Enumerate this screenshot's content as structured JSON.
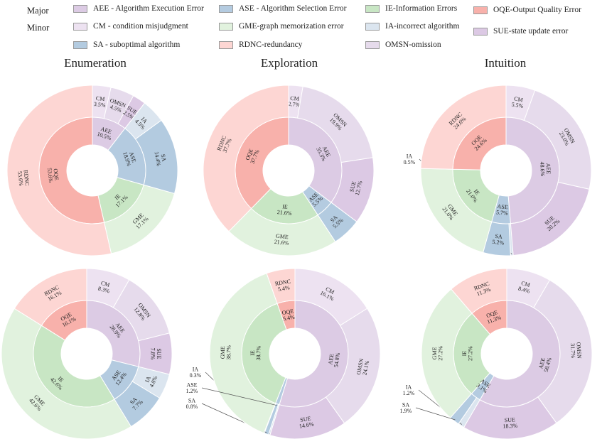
{
  "legend": {
    "major_label": "Major",
    "minor_label": "Minor",
    "items": [
      {
        "key": "AEE",
        "text": "AEE - Algorithm Execution Error",
        "color": "#dccbe4"
      },
      {
        "key": "ASE",
        "text": "ASE - Algorithm Selection Error",
        "color": "#b4cbe0"
      },
      {
        "key": "IE",
        "text": "IE-Information Errors",
        "color": "#c8e6c4"
      },
      {
        "key": "OQE",
        "text": "OQE-Output Quality Error",
        "color": "#f8b1ab"
      },
      {
        "key": "CM",
        "text": "CM - condition misjudgment",
        "color": "#ede2f1"
      },
      {
        "key": "GME",
        "text": "GME-graph memorization error",
        "color": "#e1f2de"
      },
      {
        "key": "IA",
        "text": "IA-incorrect algorithm",
        "color": "#dbe5ef"
      },
      {
        "key": "SUE",
        "text": "SUE-state update error",
        "color": "#dcc9e4"
      },
      {
        "key": "SA",
        "text": "SA - suboptimal algorithm",
        "color": "#b3cbe0"
      },
      {
        "key": "RDNC",
        "text": "RDNC-redundancy",
        "color": "#fdd6d3"
      },
      {
        "key": "OMSN",
        "text": "OMSN-omission",
        "color": "#e6dbec"
      }
    ]
  },
  "colors": {
    "AEE": "#dccbe4",
    "ASE": "#b4cbe0",
    "IE": "#c8e6c4",
    "OQE": "#f8b1ab",
    "CM": "#ede2f1",
    "OMSN": "#e6dbec",
    "SUE": "#dcc9e4",
    "SA": "#b3cbe0",
    "IA": "#dbe5ef",
    "GME": "#e1f2de",
    "RDNC": "#fdd6d3"
  },
  "column_titles": [
    "Enumeration",
    "Exploration",
    "Intuition"
  ],
  "chart_data": [
    {
      "type": "sunburst",
      "title": "Enumeration",
      "row": 1,
      "start_angle": 90,
      "inner": [
        {
          "label": "AEE",
          "value": 10.5
        },
        {
          "label": "ASE",
          "value": 18.9
        },
        {
          "label": "IE",
          "value": 17.1
        },
        {
          "label": "OQE",
          "value": 53.6
        }
      ],
      "outer": [
        {
          "label": "CM",
          "value": 3.5,
          "parent": "AEE"
        },
        {
          "label": "OMSN",
          "value": 4.5,
          "parent": "AEE"
        },
        {
          "label": "SUE",
          "value": 2.5,
          "parent": "AEE"
        },
        {
          "label": "IA",
          "value": 4.5,
          "parent": "ASE"
        },
        {
          "label": "SA",
          "value": 14.4,
          "parent": "ASE"
        },
        {
          "label": "GME",
          "value": 17.1,
          "parent": "IE"
        },
        {
          "label": "RDNC",
          "value": 53.6,
          "parent": "OQE"
        }
      ]
    },
    {
      "type": "sunburst",
      "title": "Exploration",
      "row": 1,
      "start_angle": 90,
      "inner": [
        {
          "label": "AEE",
          "value": 35.3
        },
        {
          "label": "ASE",
          "value": 5.5
        },
        {
          "label": "IE",
          "value": 21.6
        },
        {
          "label": "OQE",
          "value": 37.7
        }
      ],
      "outer": [
        {
          "label": "CM",
          "value": 2.7,
          "parent": "AEE"
        },
        {
          "label": "OMSN",
          "value": 19.9,
          "parent": "AEE"
        },
        {
          "label": "SUE",
          "value": 12.7,
          "parent": "AEE"
        },
        {
          "label": "SA",
          "value": 5.5,
          "parent": "ASE"
        },
        {
          "label": "GME",
          "value": 21.6,
          "parent": "IE"
        },
        {
          "label": "RDNC",
          "value": 37.7,
          "parent": "OQE"
        }
      ]
    },
    {
      "type": "sunburst",
      "title": "Intuition",
      "row": 1,
      "start_angle": 90,
      "inner": [
        {
          "label": "AEE",
          "value": 48.6
        },
        {
          "label": "ASE",
          "value": 5.7
        },
        {
          "label": "IE",
          "value": 21.0
        },
        {
          "label": "OQE",
          "value": 24.6
        }
      ],
      "outer": [
        {
          "label": "CM",
          "value": 5.5,
          "parent": "AEE"
        },
        {
          "label": "OMSN",
          "value": 23.0,
          "parent": "AEE"
        },
        {
          "label": "SUE",
          "value": 20.2,
          "parent": "AEE"
        },
        {
          "label": "IA",
          "value": 0.5,
          "parent": "ASE",
          "callout": true
        },
        {
          "label": "SA",
          "value": 5.2,
          "parent": "ASE"
        },
        {
          "label": "GME",
          "value": 21.0,
          "parent": "IE"
        },
        {
          "label": "RDNC",
          "value": 24.6,
          "parent": "OQE"
        }
      ]
    },
    {
      "type": "sunburst",
      "title": "Enumeration",
      "row": 2,
      "start_angle": 90,
      "inner": [
        {
          "label": "AEE",
          "value": 28.9
        },
        {
          "label": "ASE",
          "value": 12.4
        },
        {
          "label": "IE",
          "value": 42.6
        },
        {
          "label": "OQE",
          "value": 16.1
        }
      ],
      "outer": [
        {
          "label": "CM",
          "value": 8.3,
          "parent": "AEE"
        },
        {
          "label": "OMSN",
          "value": 12.8,
          "parent": "AEE"
        },
        {
          "label": "SUE",
          "value": 7.8,
          "parent": "AEE"
        },
        {
          "label": "IA",
          "value": 4.8,
          "parent": "ASE"
        },
        {
          "label": "SA",
          "value": 7.7,
          "parent": "ASE"
        },
        {
          "label": "GME",
          "value": 42.6,
          "parent": "IE"
        },
        {
          "label": "RDNC",
          "value": 16.1,
          "parent": "OQE"
        }
      ]
    },
    {
      "type": "sunburst",
      "title": "Exploration",
      "row": 2,
      "start_angle": 90,
      "inner": [
        {
          "label": "AEE",
          "value": 54.8
        },
        {
          "label": "ASE",
          "value": 1.2
        },
        {
          "label": "IE",
          "value": 38.7
        },
        {
          "label": "OQE",
          "value": 5.4
        }
      ],
      "outer": [
        {
          "label": "CM",
          "value": 16.1,
          "parent": "AEE"
        },
        {
          "label": "OMSN",
          "value": 24.1,
          "parent": "AEE"
        },
        {
          "label": "SUE",
          "value": 14.6,
          "parent": "AEE"
        },
        {
          "label": "IA",
          "value": 0.3,
          "parent": "ASE",
          "callout": true
        },
        {
          "label": "SA",
          "value": 0.8,
          "parent": "ASE",
          "callout": true
        },
        {
          "label": "GME",
          "value": 38.7,
          "parent": "IE"
        },
        {
          "label": "RDNC",
          "value": 5.4,
          "parent": "OQE"
        }
      ]
    },
    {
      "type": "sunburst",
      "title": "Intuition",
      "row": 2,
      "start_angle": 90,
      "inner": [
        {
          "label": "AEE",
          "value": 58.4
        },
        {
          "label": "ASE",
          "value": 3.1
        },
        {
          "label": "IE",
          "value": 27.2
        },
        {
          "label": "OQE",
          "value": 11.3
        }
      ],
      "outer": [
        {
          "label": "CM",
          "value": 8.4,
          "parent": "AEE"
        },
        {
          "label": "OMSN",
          "value": 31.7,
          "parent": "AEE"
        },
        {
          "label": "SUE",
          "value": 18.3,
          "parent": "AEE"
        },
        {
          "label": "IA",
          "value": 1.2,
          "parent": "ASE",
          "callout": true
        },
        {
          "label": "SA",
          "value": 1.9,
          "parent": "ASE",
          "callout": true
        },
        {
          "label": "GME",
          "value": 27.2,
          "parent": "IE"
        },
        {
          "label": "RDNC",
          "value": 11.3,
          "parent": "OQE"
        }
      ]
    }
  ]
}
